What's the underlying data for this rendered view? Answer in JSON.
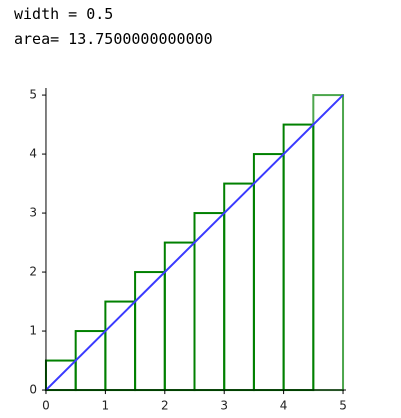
{
  "text": {
    "width_line": "width = 0.5",
    "area_line": "area= 13.7500000000000"
  },
  "chart_data": {
    "type": "histogram",
    "bins": [
      0,
      0.5,
      1,
      1.5,
      2,
      2.5,
      3,
      3.5,
      4,
      4.5,
      5
    ],
    "values": [
      0.5,
      1,
      1.5,
      2,
      2.5,
      3,
      3.5,
      4,
      4.5,
      5
    ],
    "color": "#008000",
    "line": {
      "x": [
        0,
        5
      ],
      "y": [
        0,
        5
      ],
      "color": "#3a3aff"
    },
    "xlim": [
      -0.05,
      5.05
    ],
    "ylim": [
      -0.05,
      5.12
    ],
    "xticks": [
      0,
      1,
      2,
      3,
      4,
      5
    ],
    "yticks": [
      0,
      1,
      2,
      3,
      4,
      5
    ]
  }
}
